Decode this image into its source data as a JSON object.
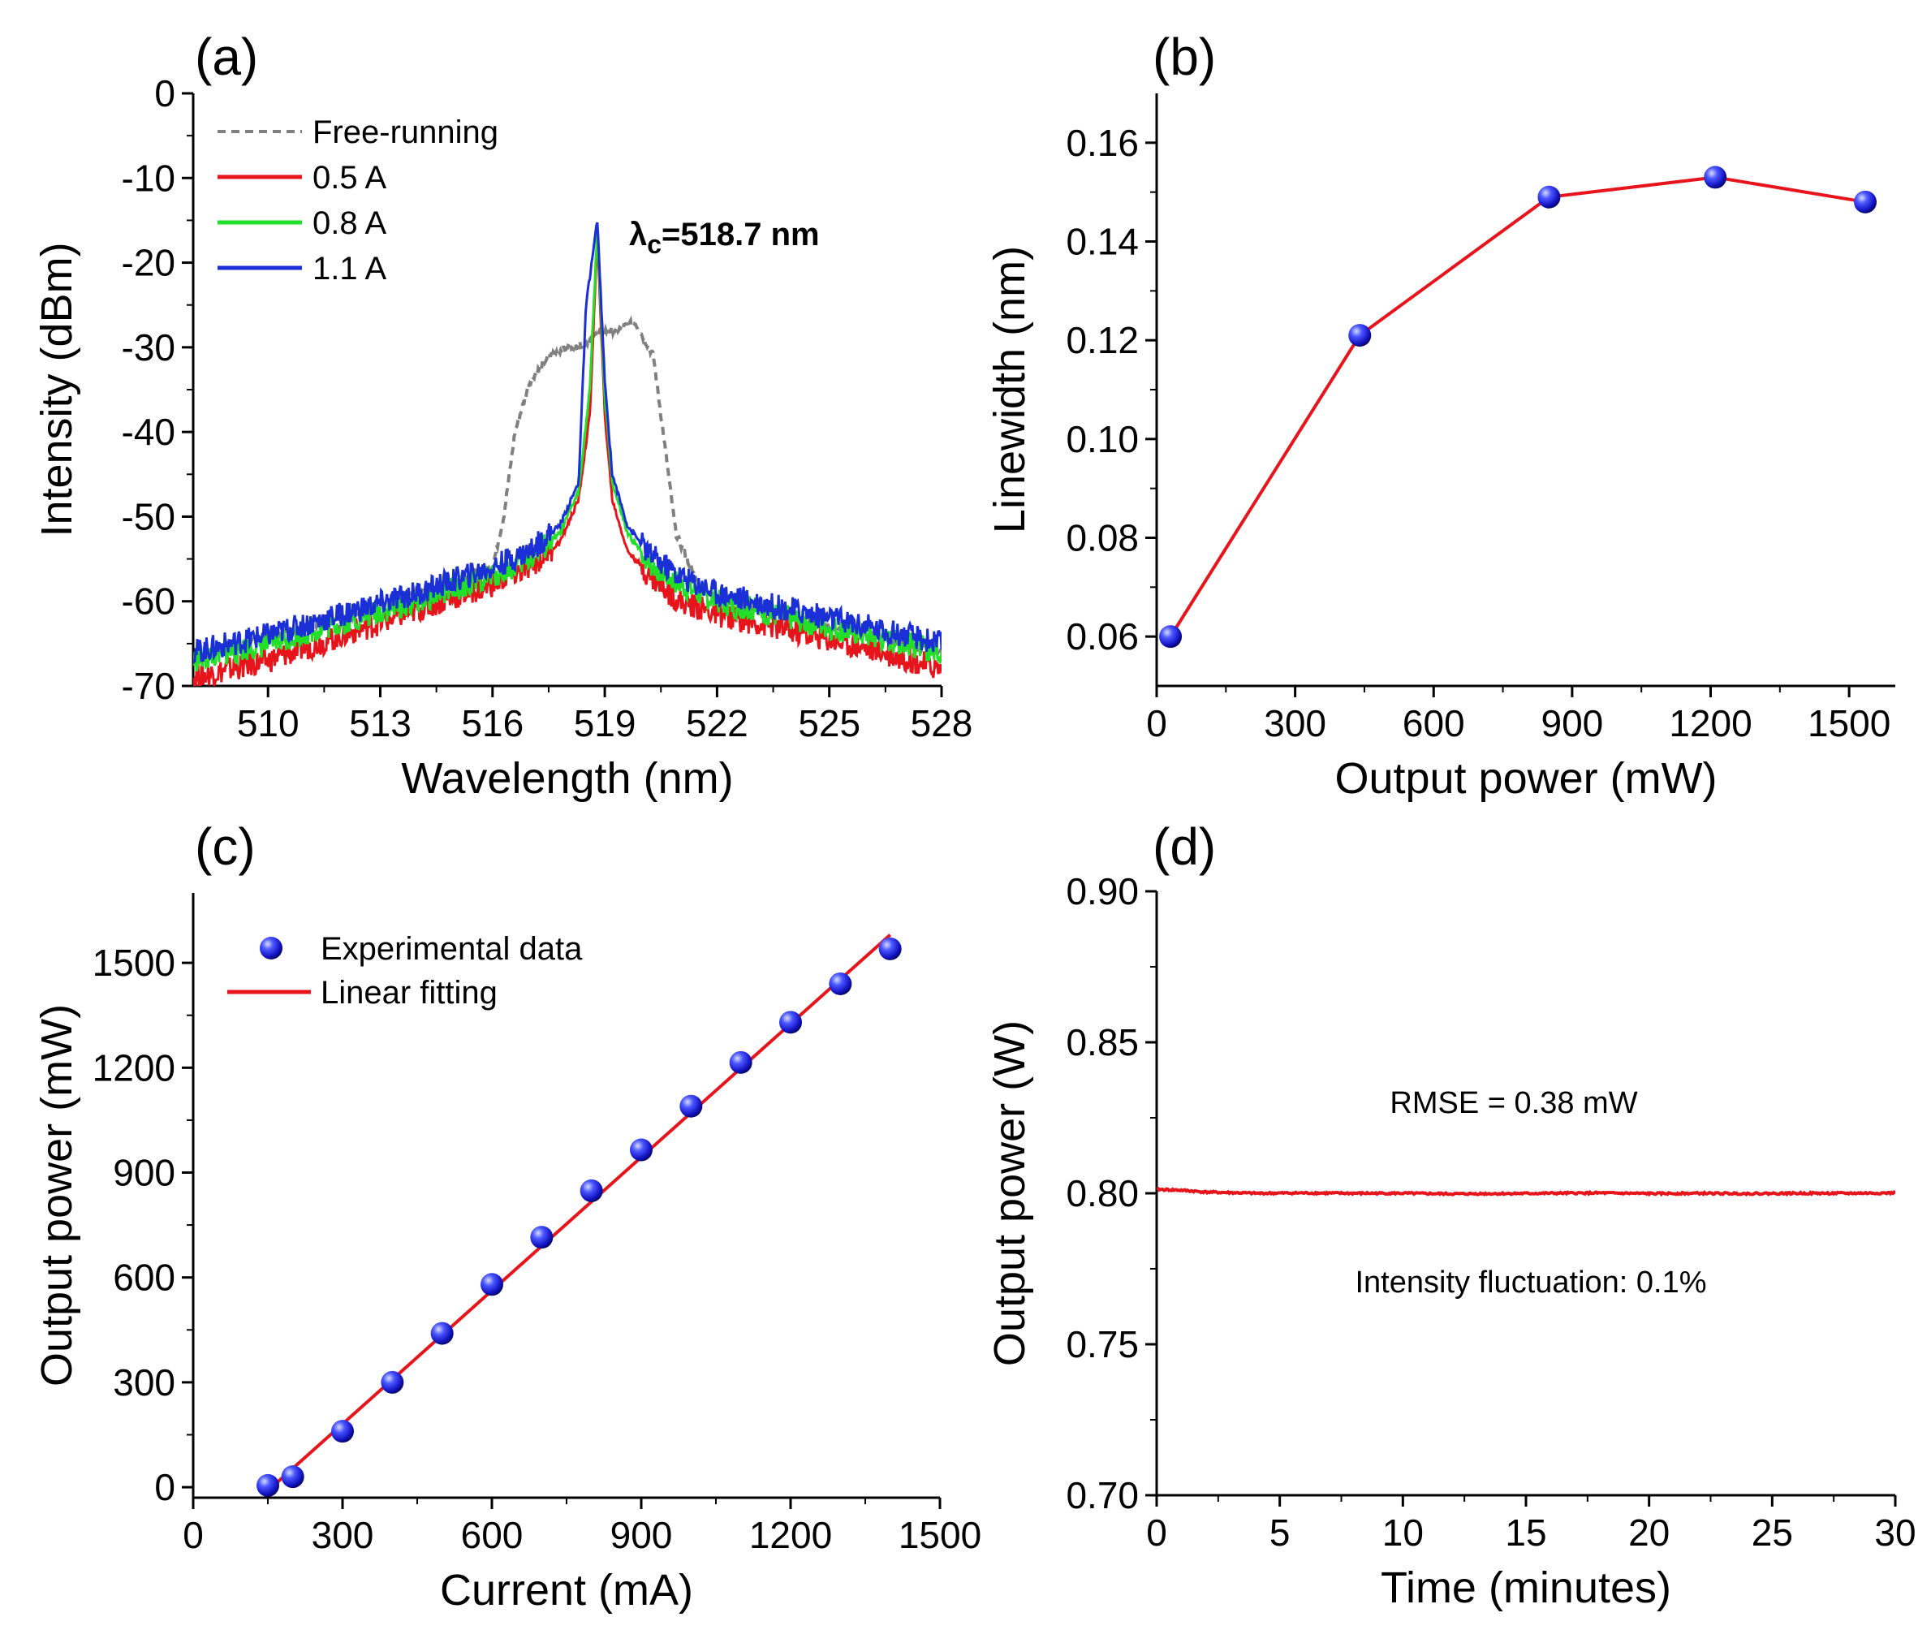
{
  "chart_data": [
    {
      "panel": "(a)",
      "type": "line",
      "xlabel": "Wavelength (nm)",
      "ylabel": "Intensity (dBm)",
      "xlim": [
        508,
        528
      ],
      "ylim": [
        -70,
        0
      ],
      "xticks": [
        510,
        513,
        516,
        519,
        522,
        525,
        528
      ],
      "yticks": [
        0,
        -10,
        -20,
        -30,
        -40,
        -50,
        -60,
        -70
      ],
      "legend_position": "top-left",
      "annotation": {
        "lambda": "λ",
        "sub": "c",
        "text": "=518.7 nm"
      },
      "series": [
        {
          "name": "Free-running",
          "color": "#808080",
          "style": "dashed",
          "x": [
            508,
            510,
            512,
            514,
            516,
            516.3,
            516.6,
            517,
            517.5,
            518,
            518.5,
            518.9,
            519.3,
            519.8,
            520.3,
            520.5,
            520.9,
            521.5,
            522,
            524,
            526,
            528
          ],
          "y": [
            -67,
            -64,
            -62,
            -59,
            -56,
            -50,
            -40,
            -34,
            -31,
            -30,
            -29.5,
            -28,
            -28,
            -27,
            -31,
            -38,
            -52,
            -58,
            -59.5,
            -62,
            -64,
            -66
          ]
        },
        {
          "name": "0.5 A",
          "color": "#e8141c",
          "style": "solid",
          "x": [
            508,
            510,
            512,
            514,
            516,
            517,
            517.8,
            518.3,
            518.6,
            518.8,
            519.0,
            519.2,
            519.6,
            520.2,
            521,
            522,
            524,
            526,
            528
          ],
          "y": [
            -69,
            -67,
            -64,
            -61,
            -58,
            -56,
            -53,
            -48,
            -38,
            -17,
            -38,
            -48,
            -54,
            -57,
            -60,
            -61.5,
            -63.5,
            -65.5,
            -68
          ]
        },
        {
          "name": "0.8 A",
          "color": "#22e028",
          "style": "solid",
          "x": [
            508,
            510,
            512,
            514,
            516,
            517,
            517.8,
            518.3,
            518.6,
            518.8,
            519.0,
            519.2,
            519.6,
            520.2,
            521,
            522,
            524,
            526,
            528
          ],
          "y": [
            -67,
            -65,
            -62.5,
            -60,
            -57,
            -55,
            -52,
            -47,
            -35,
            -16,
            -36,
            -46,
            -52,
            -55.5,
            -58,
            -60,
            -62,
            -64,
            -66
          ]
        },
        {
          "name": "1.1 A",
          "color": "#1b2fd6",
          "style": "solid",
          "x": [
            508,
            510,
            512,
            514,
            516,
            517,
            517.8,
            518.3,
            518.5,
            518.8,
            519.0,
            519.2,
            519.6,
            520.2,
            521,
            522,
            524,
            526,
            528
          ],
          "y": [
            -66,
            -64,
            -61.5,
            -59,
            -56,
            -54,
            -51,
            -46,
            -25,
            -15,
            -34,
            -45,
            -51,
            -54.5,
            -57,
            -59,
            -61,
            -63,
            -65
          ]
        }
      ]
    },
    {
      "panel": "(b)",
      "type": "line",
      "xlabel": "Output power (mW)",
      "ylabel": "Linewidth (nm)",
      "xlim": [
        0,
        1600
      ],
      "ylim": [
        0.05,
        0.17
      ],
      "xticks": [
        0,
        300,
        600,
        900,
        1200,
        1500
      ],
      "yticks": [
        0.06,
        0.08,
        0.1,
        0.12,
        0.14,
        0.16
      ],
      "ytick_labels": [
        "0.06",
        "0.08",
        "0.10",
        "0.12",
        "0.14",
        "0.16"
      ],
      "series": [
        {
          "name": "Linewidth",
          "color": "#e8141c",
          "marker_color": "#2222ee",
          "x": [
            30,
            440,
            850,
            1210,
            1535
          ],
          "y": [
            0.06,
            0.121,
            0.149,
            0.153,
            0.148
          ]
        }
      ]
    },
    {
      "panel": "(c)",
      "type": "scatter",
      "xlabel": "Current (mA)",
      "ylabel": "Output power (mW)",
      "xlim": [
        0,
        1500
      ],
      "ylim": [
        -30,
        1700
      ],
      "xticks": [
        0,
        300,
        600,
        900,
        1200,
        1500
      ],
      "yticks": [
        0,
        300,
        600,
        900,
        1200,
        1500
      ],
      "legend_position": "top-left",
      "series": [
        {
          "name": "Experimental data",
          "marker_color": "#2222ee",
          "x": [
            150,
            200,
            300,
            400,
            500,
            600,
            700,
            800,
            900,
            1000,
            1100,
            1200,
            1300,
            1400
          ],
          "y": [
            5,
            30,
            160,
            300,
            440,
            580,
            715,
            848,
            965,
            1090,
            1215,
            1330,
            1440,
            1540
          ]
        },
        {
          "name": "Linear fitting",
          "color": "#e8141c",
          "x": [
            150,
            1400
          ],
          "y": [
            -10,
            1580
          ]
        }
      ]
    },
    {
      "panel": "(d)",
      "type": "line",
      "xlabel": "Time (minutes)",
      "ylabel": "Output power (W)",
      "xlim": [
        0,
        30
      ],
      "ylim": [
        0.7,
        0.9
      ],
      "xticks": [
        0,
        5,
        10,
        15,
        20,
        25,
        30
      ],
      "yticks": [
        0.7,
        0.75,
        0.8,
        0.85,
        0.9
      ],
      "ytick_labels": [
        "0.70",
        "0.75",
        "0.80",
        "0.85",
        "0.90"
      ],
      "annotations": [
        "RMSE = 0.38 mW",
        "Intensity fluctuation: 0.1%"
      ],
      "series": [
        {
          "name": "Output power",
          "color": "#e8141c",
          "x": [
            0,
            1,
            2,
            4,
            6,
            8,
            10,
            12,
            14,
            16,
            18,
            20,
            22,
            24,
            26,
            28,
            30
          ],
          "y": [
            0.8013,
            0.801,
            0.8004,
            0.8,
            0.8001,
            0.8,
            0.8,
            0.7998,
            0.7999,
            0.8,
            0.8001,
            0.7999,
            0.8,
            0.7999,
            0.8,
            0.8,
            0.8001
          ]
        }
      ]
    }
  ]
}
